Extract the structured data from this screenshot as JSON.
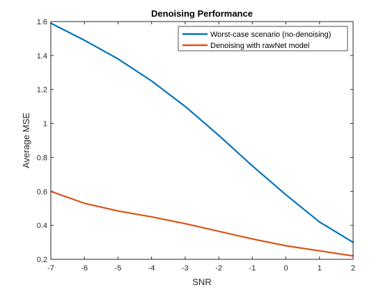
{
  "chart_data": {
    "type": "line",
    "title": "Denoising Performance",
    "xlabel": "SNR",
    "ylabel": "Average MSE",
    "xlim": [
      -7,
      2
    ],
    "ylim": [
      0.2,
      1.6
    ],
    "xticks": [
      -7,
      -6,
      -5,
      -4,
      -3,
      -2,
      -1,
      0,
      1,
      2
    ],
    "yticks": [
      0.2,
      0.4,
      0.6,
      0.8,
      1.0,
      1.2,
      1.4,
      1.6
    ],
    "ytick_labels": [
      "0.2",
      "0.4",
      "0.6",
      "0.8",
      "1",
      "1.2",
      "1.4",
      "1.6"
    ],
    "grid": false,
    "legend_position": "top-right",
    "x": [
      -7,
      -6,
      -5,
      -4,
      -3,
      -2,
      -1,
      0,
      1,
      2
    ],
    "series": [
      {
        "name": "Worst-case scenario (no-denoising)",
        "color": "#0072BD",
        "values": [
          1.59,
          1.49,
          1.38,
          1.25,
          1.1,
          0.93,
          0.75,
          0.58,
          0.42,
          0.3
        ]
      },
      {
        "name": "Denoising with rawNet model",
        "color": "#D95319",
        "values": [
          0.6,
          0.53,
          0.485,
          0.45,
          0.41,
          0.365,
          0.32,
          0.28,
          0.25,
          0.22
        ]
      }
    ]
  }
}
